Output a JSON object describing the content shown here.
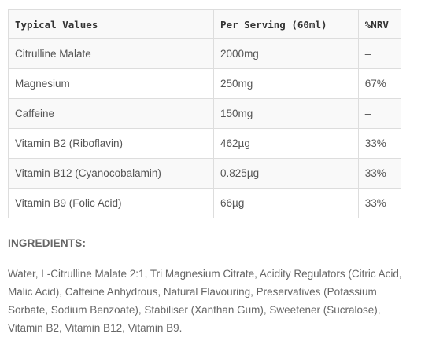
{
  "table": {
    "headers": [
      "Typical Values",
      "Per Serving (60ml)",
      "%NRV"
    ],
    "rows": [
      {
        "name": "Citrulline Malate",
        "serving": "2000mg",
        "nrv": "–"
      },
      {
        "name": "Magnesium",
        "serving": "250mg",
        "nrv": "67%"
      },
      {
        "name": "Caffeine",
        "serving": "150mg",
        "nrv": "–"
      },
      {
        "name": "Vitamin B2 (Riboflavin)",
        "serving": "462µg",
        "nrv": "33%"
      },
      {
        "name": "Vitamin B12 (Cyanocobalamin)",
        "serving": "0.825µg",
        "nrv": "33%"
      },
      {
        "name": "Vitamin B9 (Folic Acid)",
        "serving": "66µg",
        "nrv": "33%"
      }
    ]
  },
  "ingredients": {
    "heading": "INGREDIENTS:",
    "text": "Water, L-Citrulline Malate 2:1, Tri Magnesium Citrate, Acidity Regulators (Citric Acid, Malic Acid), Caffeine Anhydrous, Natural Flavouring, Preservatives (Potassium Sorbate, Sodium Benzoate), Stabiliser (Xanthan Gum), Sweetener (Sucralose), Vitamin B2, Vitamin B12, Vitamin B9."
  }
}
